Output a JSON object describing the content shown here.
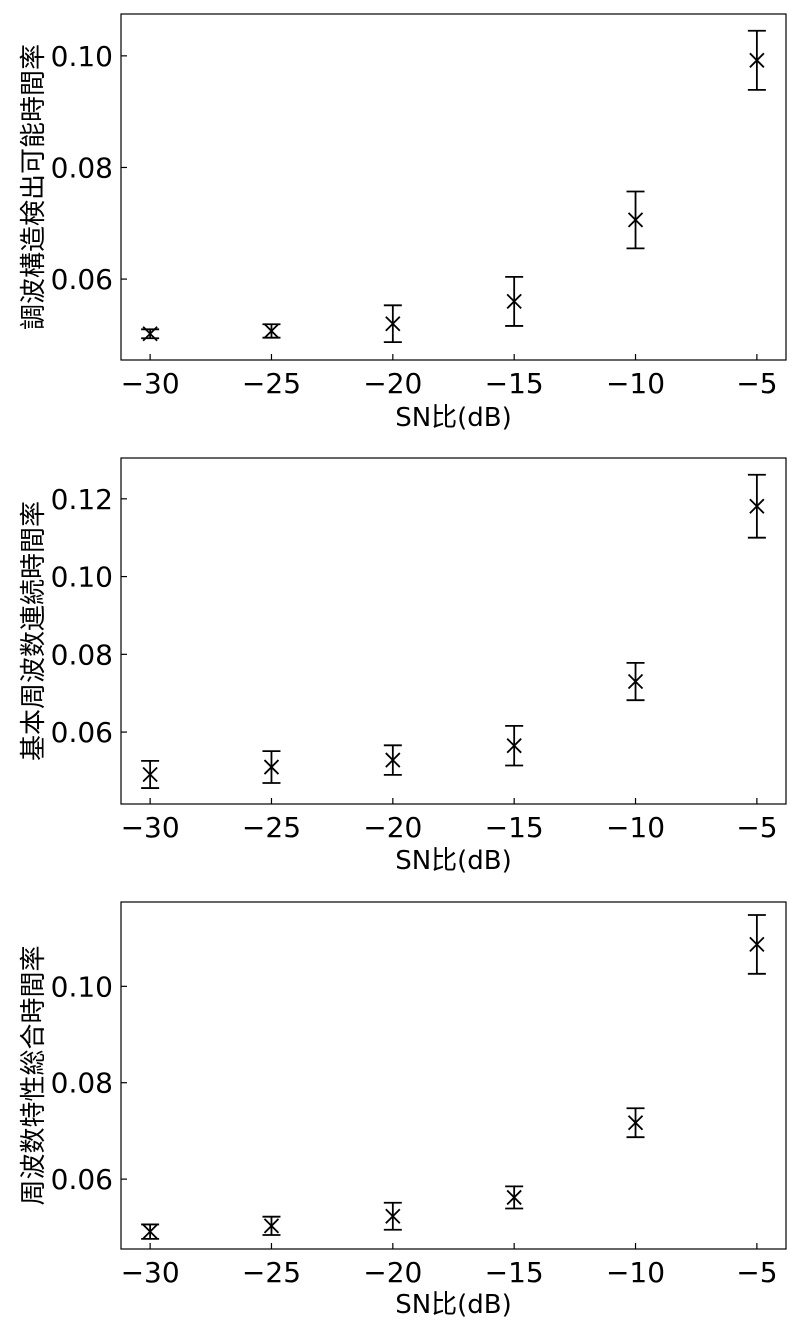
{
  "chart_data": [
    {
      "type": "scatter",
      "title": "",
      "xlabel": "SN比(dB)",
      "ylabel": "調波構造検出可能時間率",
      "xlim": [
        -31.2,
        -3.8
      ],
      "ylim": [
        0.0455,
        0.1075
      ],
      "xticks": [
        -30,
        -25,
        -20,
        -15,
        -10,
        -5
      ],
      "xtick_labels": [
        "−30",
        "−25",
        "−20",
        "−15",
        "−10",
        "−5"
      ],
      "yticks": [
        0.06,
        0.08,
        0.1
      ],
      "ytick_labels": [
        "0.06",
        "0.08",
        "0.10"
      ],
      "grid": false,
      "series": [
        {
          "x": [
            -30,
            -25,
            -20,
            -15,
            -10,
            -5
          ],
          "y": [
            0.0502,
            0.0507,
            0.052,
            0.056,
            0.0706,
            0.0992
          ],
          "err": [
            0.0008,
            0.0012,
            0.0033,
            0.0044,
            0.0051,
            0.0053
          ]
        }
      ]
    },
    {
      "type": "scatter",
      "title": "",
      "xlabel": "SN比(dB)",
      "ylabel": "基本周波数連続時間率",
      "xlim": [
        -31.2,
        -3.8
      ],
      "ylim": [
        0.0415,
        0.1305
      ],
      "xticks": [
        -30,
        -25,
        -20,
        -15,
        -10,
        -5
      ],
      "xtick_labels": [
        "−30",
        "−25",
        "−20",
        "−15",
        "−10",
        "−5"
      ],
      "yticks": [
        0.06,
        0.08,
        0.1,
        0.12
      ],
      "ytick_labels": [
        "0.06",
        "0.08",
        "0.10",
        "0.12"
      ],
      "grid": false,
      "series": [
        {
          "x": [
            -30,
            -25,
            -20,
            -15,
            -10,
            -5
          ],
          "y": [
            0.0491,
            0.051,
            0.0528,
            0.0565,
            0.073,
            0.1181
          ],
          "err": [
            0.0035,
            0.0041,
            0.0038,
            0.0051,
            0.0048,
            0.0081
          ]
        }
      ]
    },
    {
      "type": "scatter",
      "title": "",
      "xlabel": "SN比(dB)",
      "ylabel": "周波数特性総合時間率",
      "xlim": [
        -31.2,
        -3.8
      ],
      "ylim": [
        0.0455,
        0.1175
      ],
      "xticks": [
        -30,
        -25,
        -20,
        -15,
        -10,
        -5
      ],
      "xtick_labels": [
        "−30",
        "−25",
        "−20",
        "−15",
        "−10",
        "−5"
      ],
      "yticks": [
        0.06,
        0.08,
        0.1
      ],
      "ytick_labels": [
        "0.06",
        "0.08",
        "0.10"
      ],
      "grid": false,
      "series": [
        {
          "x": [
            -30,
            -25,
            -20,
            -15,
            -10,
            -5
          ],
          "y": [
            0.0491,
            0.0503,
            0.0523,
            0.0562,
            0.0717,
            0.1087
          ],
          "err": [
            0.0015,
            0.0019,
            0.0028,
            0.0023,
            0.003,
            0.0061
          ]
        }
      ]
    }
  ]
}
